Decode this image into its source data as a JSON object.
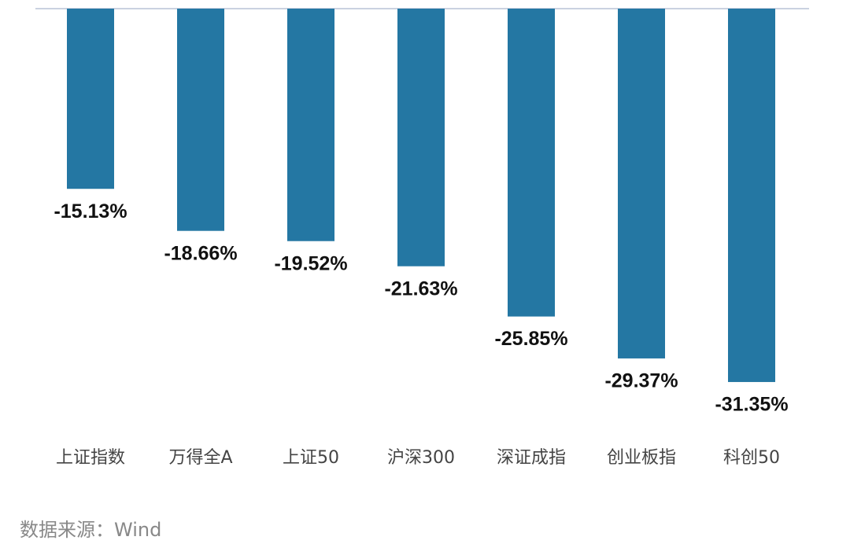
{
  "chart_data": {
    "type": "bar",
    "categories": [
      "上证指数",
      "万得全A",
      "上证50",
      "沪深300",
      "深证成指",
      "创业板指",
      "科创50"
    ],
    "values": [
      -15.13,
      -18.66,
      -19.52,
      -21.63,
      -25.85,
      -29.37,
      -31.35
    ],
    "value_labels": [
      "-15.13%",
      "-18.66%",
      "-19.52%",
      "-21.63%",
      "-25.85%",
      "-29.37%",
      "-31.35%"
    ],
    "color": "#2477a3",
    "source": "数据来源：Wind"
  }
}
